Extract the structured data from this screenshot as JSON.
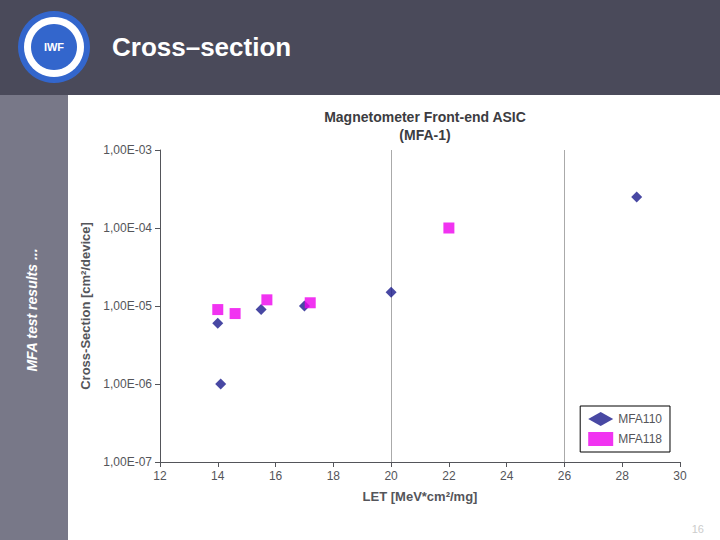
{
  "chart_data": {
    "type": "scatter",
    "title": "Magnetometer Front-end ASIC\n(MFA-1)",
    "x_label": "LET [MeV*cm²/mg]",
    "y_label": "Cross-Section [cm²/device]",
    "annotations": [
      "Cross–section",
      "MFA test results ...",
      "16",
      "IWF"
    ],
    "series": [
      {
        "name": "MFA110",
        "color": "#1a1a8c",
        "marker": "diamond",
        "x": [
          14.0,
          14.1,
          15.5,
          17.0,
          20.0,
          28.5
        ],
        "values": [
          6e-06,
          1e-06,
          9e-06,
          1e-05,
          1.5e-05,
          0.00025
        ]
      },
      {
        "name": "MFA118",
        "color": "#ee00ee",
        "marker": "square",
        "x": [
          14.0,
          14.6,
          15.7,
          17.2,
          22.0
        ],
        "values": [
          9e-06,
          8e-06,
          1.2e-05,
          1.1e-05,
          0.0001
        ]
      }
    ],
    "vlines": [
      20,
      26
    ],
    "xlim": [
      12,
      30
    ],
    "xticks": [
      12,
      14,
      16,
      18,
      20,
      22,
      24,
      26,
      28,
      30
    ],
    "ylim": [
      1e-07,
      0.001
    ],
    "yticks": [
      {
        "value": 1e-07,
        "label": "1,00E-07"
      },
      {
        "value": 1e-06,
        "label": "1,00E-06"
      },
      {
        "value": 1e-05,
        "label": "1,00E-05"
      },
      {
        "value": 0.0001,
        "label": "1,00E-04"
      },
      {
        "value": 0.001,
        "label": "1,00E-03"
      }
    ],
    "log": "y",
    "grid": false,
    "legend": "lower right"
  }
}
